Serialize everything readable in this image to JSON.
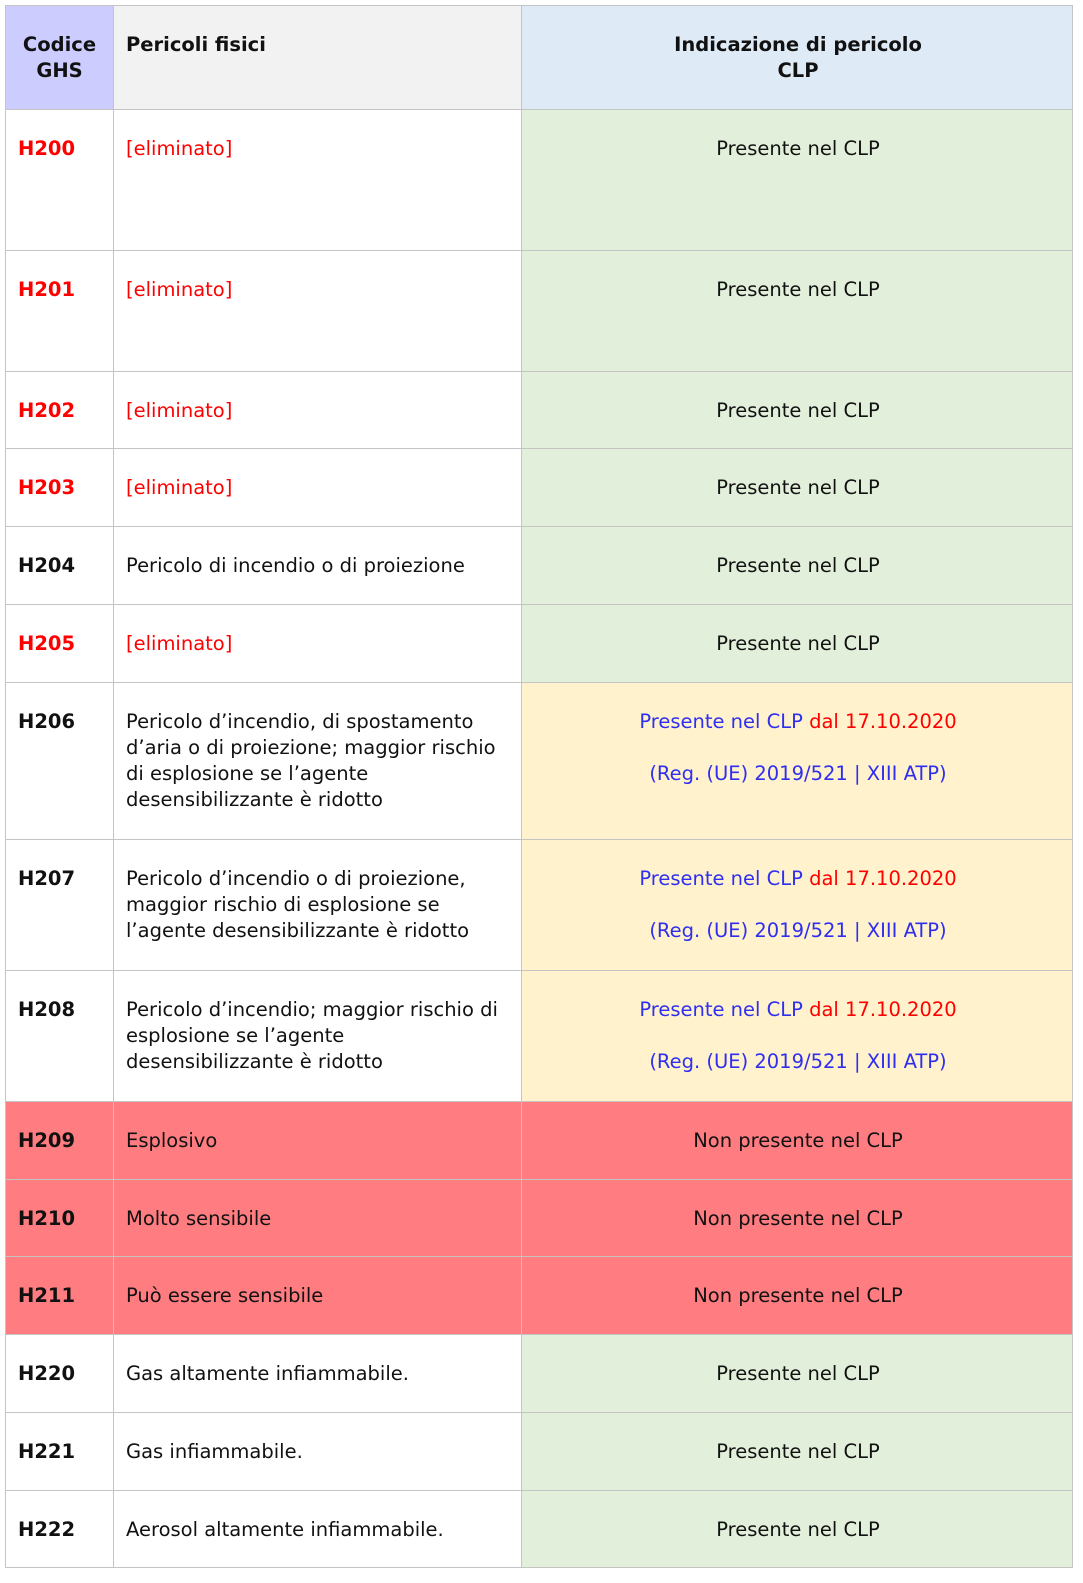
{
  "table": {
    "header": [
      "Codice\nGHS",
      "Pericoli fisici",
      "Indicazione di pericolo\nCLP"
    ],
    "rows": [
      {
        "code": "H200",
        "hazard": "[eliminato]",
        "status": "Presente nel CLP",
        "text_color": "#ff0000",
        "fill": "#ffffff",
        "status_fill": "#e2efda"
      },
      {
        "code": "H201",
        "hazard": "[eliminato]",
        "status": "Presente nel CLP",
        "text_color": "#ff0000",
        "fill": "#ffffff",
        "status_fill": "#e2efda"
      },
      {
        "code": "H202",
        "hazard": "[eliminato]",
        "status": "Presente nel CLP",
        "text_color": "#ff0000",
        "fill": "#ffffff",
        "status_fill": "#e2efda"
      },
      {
        "code": "H203",
        "hazard": "[eliminato]",
        "status": "Presente nel CLP",
        "text_color": "#ff0000",
        "fill": "#ffffff",
        "status_fill": "#e2efda"
      },
      {
        "code": "H204",
        "hazard": "Pericolo di incendio o di proiezione",
        "status": "Presente nel CLP",
        "text_color": "#111111",
        "fill": "#ffffff",
        "status_fill": "#e2efda"
      },
      {
        "code": "H205",
        "hazard": "[eliminato]",
        "status": "Presente nel CLP",
        "text_color": "#ff0000",
        "fill": "#ffffff",
        "status_fill": "#e2efda"
      },
      {
        "code": "H206",
        "hazard": "Pericolo d’incendio, di spostamento d’aria o di proiezione; maggior rischio di esplosione se l’agente desensibilizzante è ridotto",
        "status": "Presente nel CLP",
        "since": "dal 17.10.2020",
        "reference": "(Reg. (UE) 2019/521 | XIII ATP)",
        "text_color": "#111111",
        "fill": "#ffffff",
        "status_fill": "#fff2cc"
      },
      {
        "code": "H207",
        "hazard": "Pericolo d’incendio o di proiezione, maggior rischio di esplosione se l’agente desensibilizzante è ridotto",
        "status": "Presente nel CLP",
        "since": "dal 17.10.2020",
        "reference": "(Reg. (UE) 2019/521 | XIII ATP)",
        "text_color": "#111111",
        "fill": "#ffffff",
        "status_fill": "#fff2cc"
      },
      {
        "code": "H208",
        "hazard": "Pericolo d’incendio; maggior rischio di esplosione se l’agente desensibilizzante è ridotto",
        "status": "Presente nel CLP",
        "since": "dal 17.10.2020",
        "reference": "(Reg. (UE) 2019/521 | XIII ATP)",
        "text_color": "#111111",
        "fill": "#ffffff",
        "status_fill": "#fff2cc"
      },
      {
        "code": "H209",
        "hazard": "Esplosivo",
        "status": "Non presente nel CLP",
        "text_color": "#111111",
        "fill": "#ff7c80",
        "status_fill": "#ff7c80"
      },
      {
        "code": "H210",
        "hazard": "Molto sensibile",
        "status": "Non presente nel CLP",
        "text_color": "#111111",
        "fill": "#ff7c80",
        "status_fill": "#ff7c80"
      },
      {
        "code": "H211",
        "hazard": "Può essere sensibile",
        "status": "Non presente nel CLP",
        "text_color": "#111111",
        "fill": "#ff7c80",
        "status_fill": "#ff7c80"
      },
      {
        "code": "H220",
        "hazard": "Gas altamente infiammabile.",
        "status": "Presente nel CLP",
        "text_color": "#111111",
        "fill": "#ffffff",
        "status_fill": "#e2efda"
      },
      {
        "code": "H221",
        "hazard": "Gas infiammabile.",
        "status": "Presente nel CLP",
        "text_color": "#111111",
        "fill": "#ffffff",
        "status_fill": "#e2efda"
      },
      {
        "code": "H222",
        "hazard": "Aerosol altamente infiammabile.",
        "status": "Presente nel CLP",
        "text_color": "#111111",
        "fill": "#ffffff",
        "status_fill": "#e2efda"
      }
    ]
  }
}
